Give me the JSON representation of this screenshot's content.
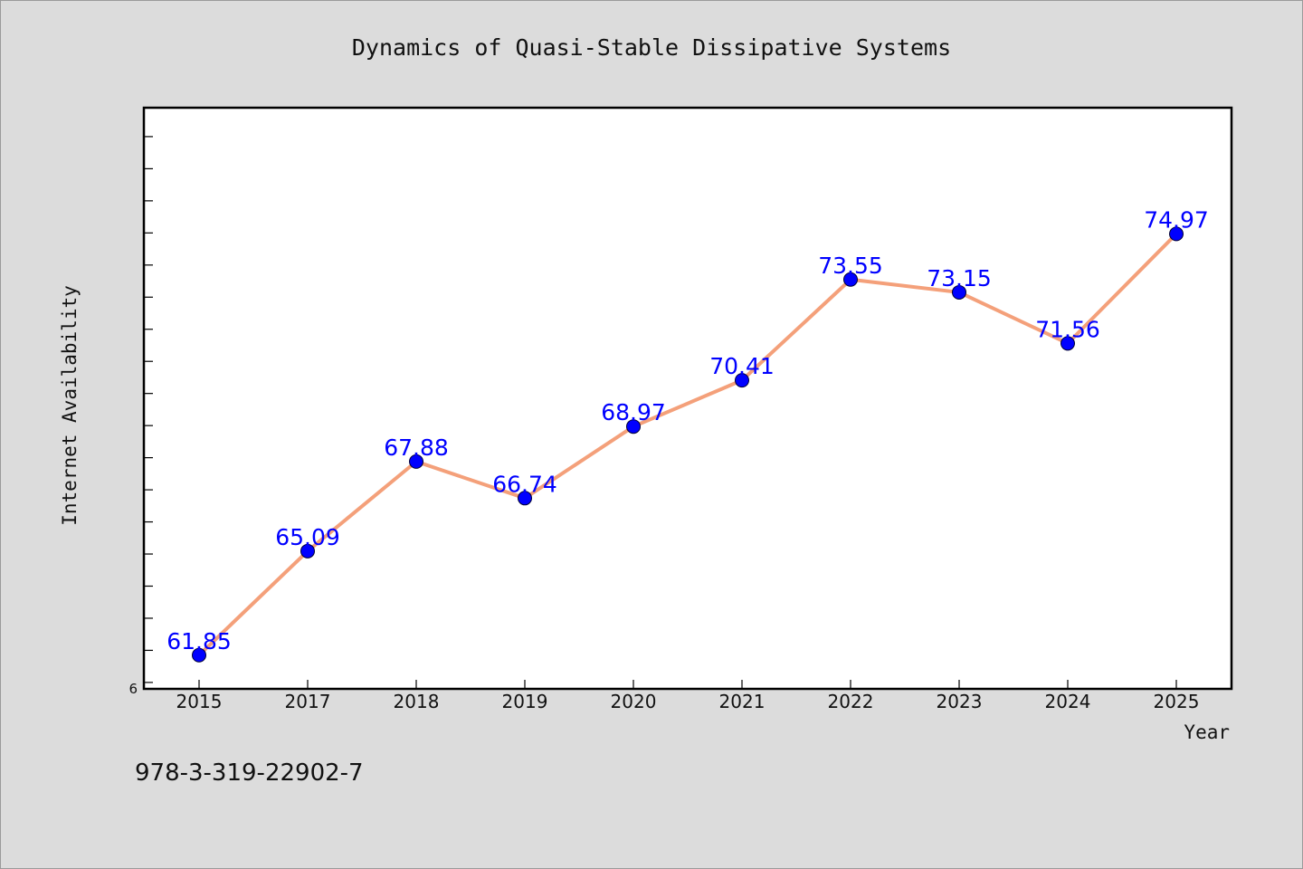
{
  "chart_data": {
    "type": "line",
    "title": "Dynamics of Quasi-Stable Dissipative Systems",
    "xlabel": "Year",
    "ylabel": "Internet Availability",
    "categories": [
      "2015",
      "2017",
      "2018",
      "2019",
      "2020",
      "2021",
      "2022",
      "2023",
      "2024",
      "2025"
    ],
    "series": [
      {
        "values": [
          61.85,
          65.09,
          67.88,
          66.74,
          68.97,
          70.41,
          73.55,
          73.15,
          71.56,
          74.97
        ],
        "labels": [
          "61.85",
          "65.09",
          "67.88",
          "66.74",
          "68.97",
          "70.41",
          "73.55",
          "73.15",
          "71.56",
          "74.97"
        ]
      }
    ],
    "y_tick_label": "6",
    "ylim": [
      60.8,
      78.9
    ],
    "y_minor_tick_step": 1,
    "grid": false,
    "colors": {
      "line": "#f4a07a",
      "marker": "#0000ff",
      "data_label": "#0000ff",
      "plot_background": "#ffffff",
      "figure_background": "#dcdcdc"
    }
  },
  "footer": {
    "isbn": "978-3-319-22902-7"
  }
}
